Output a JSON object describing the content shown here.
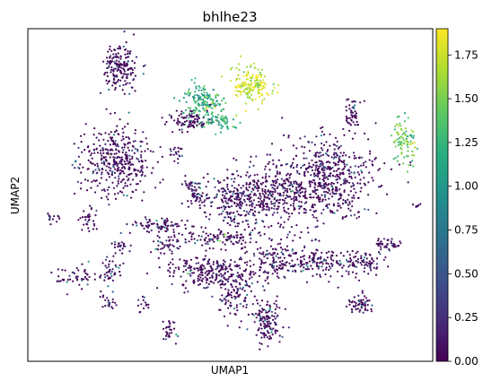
{
  "chart_data": {
    "type": "scatter",
    "title": "bhlhe23",
    "xlabel": "UMAP1",
    "ylabel": "UMAP2",
    "colorbar": {
      "colormap": "viridis",
      "range": [
        0.0,
        1.9
      ],
      "ticks": [
        0.0,
        0.25,
        0.5,
        0.75,
        1.0,
        1.25,
        1.5,
        1.75
      ],
      "tick_labels": [
        "0.00",
        "0.25",
        "0.50",
        "0.75",
        "1.00",
        "1.25",
        "1.50",
        "1.75"
      ]
    },
    "axis_ticks_shown": false,
    "grid": false,
    "clusters": [
      {
        "center": [
          0.23,
          0.89
        ],
        "spread": [
          0.02,
          0.035
        ],
        "n": 180,
        "value_mean": 0.1
      },
      {
        "center": [
          0.55,
          0.83
        ],
        "spread": [
          0.025,
          0.025
        ],
        "n": 170,
        "value_mean": 1.75
      },
      {
        "center": [
          0.43,
          0.78
        ],
        "spread": [
          0.025,
          0.025
        ],
        "n": 150,
        "value_mean": 1.2
      },
      {
        "center": [
          0.4,
          0.72
        ],
        "spread": [
          0.03,
          0.015
        ],
        "n": 90,
        "value_mean": 0.35
      },
      {
        "center": [
          0.48,
          0.72
        ],
        "spread": [
          0.02,
          0.012
        ],
        "n": 60,
        "value_mean": 1.2
      },
      {
        "center": [
          0.8,
          0.74
        ],
        "spread": [
          0.01,
          0.03
        ],
        "n": 50,
        "value_mean": 0.1
      },
      {
        "center": [
          0.22,
          0.6
        ],
        "spread": [
          0.045,
          0.055
        ],
        "n": 380,
        "value_mean": 0.15
      },
      {
        "center": [
          0.93,
          0.66
        ],
        "spread": [
          0.015,
          0.03
        ],
        "n": 90,
        "value_mean": 1.45
      },
      {
        "center": [
          0.75,
          0.56
        ],
        "spread": [
          0.06,
          0.06
        ],
        "n": 420,
        "value_mean": 0.2
      },
      {
        "center": [
          0.62,
          0.5
        ],
        "spread": [
          0.07,
          0.055
        ],
        "n": 480,
        "value_mean": 0.2
      },
      {
        "center": [
          0.51,
          0.47
        ],
        "spread": [
          0.03,
          0.04
        ],
        "n": 170,
        "value_mean": 0.2
      },
      {
        "center": [
          0.42,
          0.5
        ],
        "spread": [
          0.012,
          0.025
        ],
        "n": 50,
        "value_mean": 0.1
      },
      {
        "center": [
          0.33,
          0.41
        ],
        "spread": [
          0.035,
          0.01
        ],
        "n": 80,
        "value_mean": 0.2
      },
      {
        "center": [
          0.34,
          0.35
        ],
        "spread": [
          0.02,
          0.015
        ],
        "n": 40,
        "value_mean": 0.2
      },
      {
        "center": [
          0.46,
          0.37
        ],
        "spread": [
          0.05,
          0.012
        ],
        "n": 90,
        "value_mean": 0.7
      },
      {
        "center": [
          0.15,
          0.42
        ],
        "spread": [
          0.01,
          0.02
        ],
        "n": 30,
        "value_mean": 0.1
      },
      {
        "center": [
          0.06,
          0.43
        ],
        "spread": [
          0.008,
          0.008
        ],
        "n": 15,
        "value_mean": 0.1
      },
      {
        "center": [
          0.45,
          0.27
        ],
        "spread": [
          0.05,
          0.025
        ],
        "n": 240,
        "value_mean": 0.2
      },
      {
        "center": [
          0.51,
          0.2
        ],
        "spread": [
          0.02,
          0.035
        ],
        "n": 100,
        "value_mean": 0.25
      },
      {
        "center": [
          0.61,
          0.3
        ],
        "spread": [
          0.04,
          0.03
        ],
        "n": 160,
        "value_mean": 0.2
      },
      {
        "center": [
          0.72,
          0.3
        ],
        "spread": [
          0.03,
          0.025
        ],
        "n": 110,
        "value_mean": 0.2
      },
      {
        "center": [
          0.83,
          0.3
        ],
        "spread": [
          0.03,
          0.02
        ],
        "n": 90,
        "value_mean": 0.2
      },
      {
        "center": [
          0.9,
          0.35
        ],
        "spread": [
          0.015,
          0.008
        ],
        "n": 25,
        "value_mean": 0.5
      },
      {
        "center": [
          0.12,
          0.25
        ],
        "spread": [
          0.025,
          0.02
        ],
        "n": 50,
        "value_mean": 0.3
      },
      {
        "center": [
          0.2,
          0.27
        ],
        "spread": [
          0.012,
          0.025
        ],
        "n": 40,
        "value_mean": 0.2
      },
      {
        "center": [
          0.23,
          0.35
        ],
        "spread": [
          0.01,
          0.02
        ],
        "n": 25,
        "value_mean": 0.2
      },
      {
        "center": [
          0.2,
          0.18
        ],
        "spread": [
          0.01,
          0.012
        ],
        "n": 20,
        "value_mean": 0.2
      },
      {
        "center": [
          0.29,
          0.17
        ],
        "spread": [
          0.008,
          0.012
        ],
        "n": 15,
        "value_mean": 0.2
      },
      {
        "center": [
          0.35,
          0.09
        ],
        "spread": [
          0.008,
          0.02
        ],
        "n": 30,
        "value_mean": 0.25
      },
      {
        "center": [
          0.59,
          0.12
        ],
        "spread": [
          0.018,
          0.035
        ],
        "n": 140,
        "value_mean": 0.35
      },
      {
        "center": [
          0.82,
          0.17
        ],
        "spread": [
          0.015,
          0.015
        ],
        "n": 60,
        "value_mean": 0.2
      },
      {
        "center": [
          0.87,
          0.36
        ],
        "spread": [
          0.01,
          0.008
        ],
        "n": 15,
        "value_mean": 0.2
      },
      {
        "center": [
          0.37,
          0.62
        ],
        "spread": [
          0.01,
          0.015
        ],
        "n": 20,
        "value_mean": 0.1
      },
      {
        "center": [
          0.4,
          0.53
        ],
        "spread": [
          0.01,
          0.01
        ],
        "n": 20,
        "value_mean": 0.1
      },
      {
        "center": [
          0.96,
          0.47
        ],
        "spread": [
          0.005,
          0.004
        ],
        "n": 6,
        "value_mean": 0.1
      }
    ]
  }
}
